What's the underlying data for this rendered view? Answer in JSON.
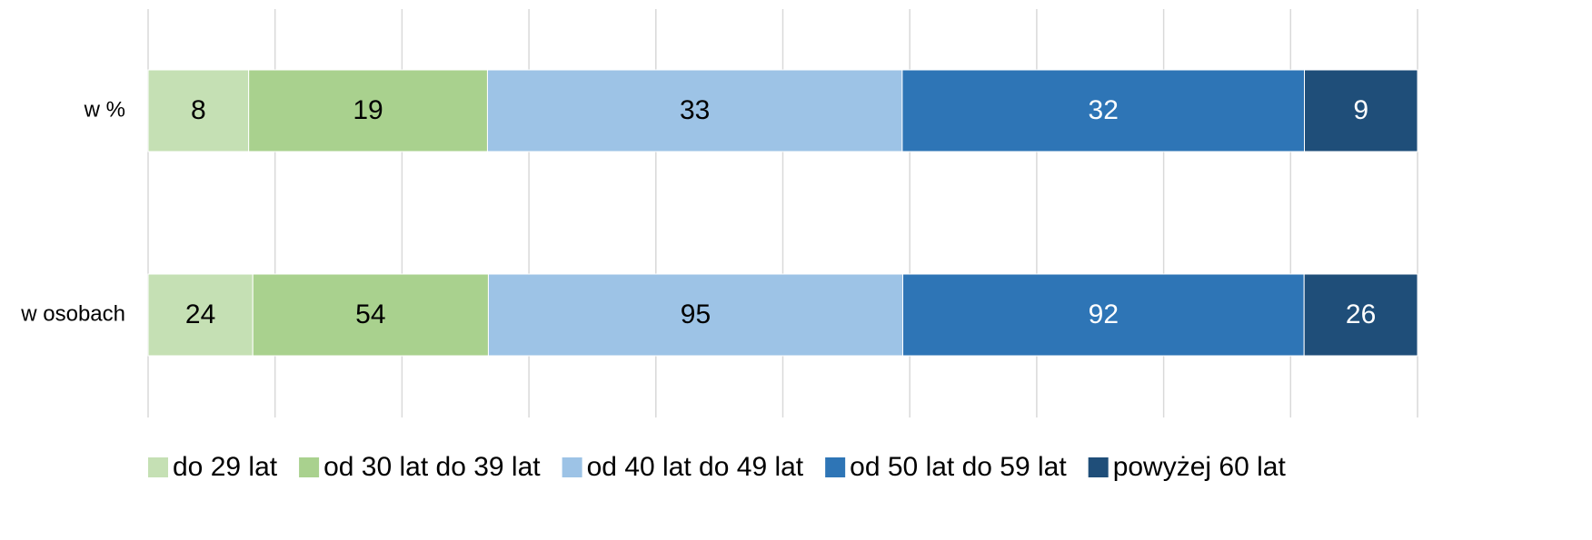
{
  "chart_data": {
    "type": "bar",
    "orientation": "horizontal",
    "stacking": "percent",
    "categories": [
      "w %",
      "w osobach"
    ],
    "series": [
      {
        "name": "do 29 lat",
        "color": "#c5e0b4",
        "label_color": "#000000",
        "values": [
          8,
          24
        ]
      },
      {
        "name": "od 30 lat do 39 lat",
        "color": "#a9d18e",
        "label_color": "#000000",
        "values": [
          19,
          54
        ]
      },
      {
        "name": "od 40 lat do 49 lat",
        "color": "#9dc3e6",
        "label_color": "#000000",
        "values": [
          33,
          95
        ]
      },
      {
        "name": "od 50 lat do 59 lat",
        "color": "#2e75b6",
        "label_color": "#ffffff",
        "values": [
          32,
          92
        ]
      },
      {
        "name": "powyżej 60 lat",
        "color": "#1f4e79",
        "label_color": "#ffffff",
        "values": [
          9,
          26
        ]
      }
    ],
    "xlim": [
      0,
      100
    ],
    "xticks": [
      0,
      10,
      20,
      30,
      40,
      50,
      60,
      70,
      80,
      90,
      100
    ],
    "show_tick_labels": false,
    "grid": true,
    "legend": "bottom"
  }
}
